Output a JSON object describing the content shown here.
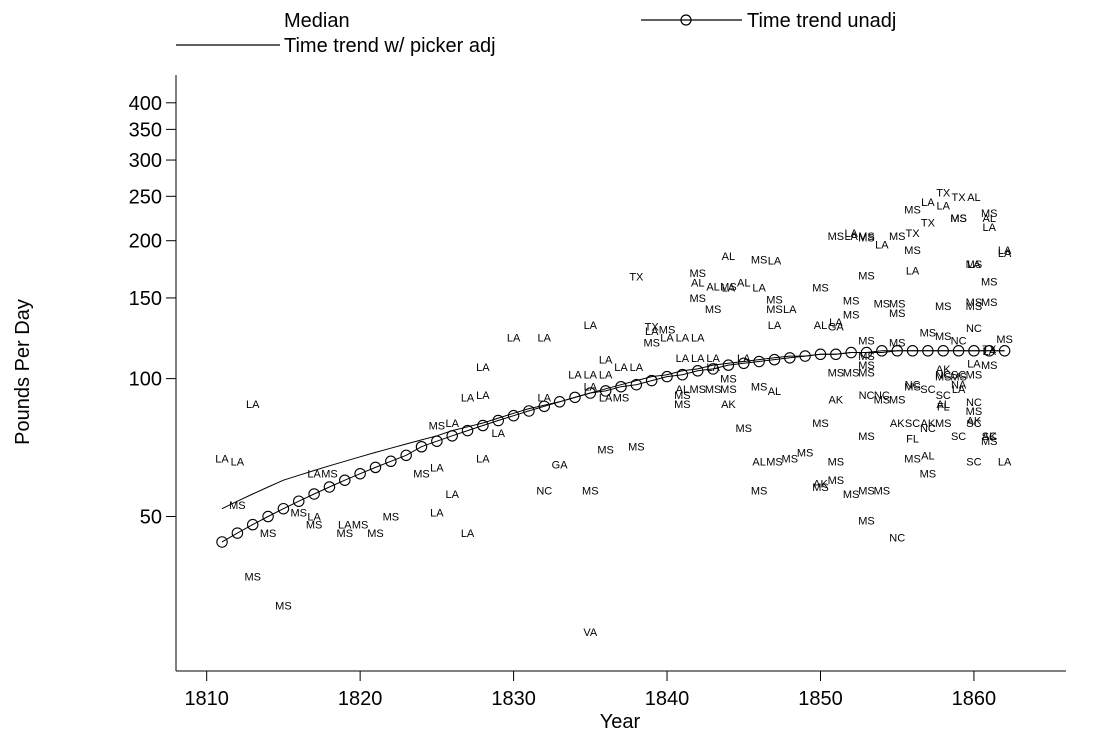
{
  "chart_data": {
    "type": "scatter",
    "title": "",
    "xlabel": "Year",
    "ylabel": "Pounds Per Day",
    "xlim": [
      1808,
      1866
    ],
    "ylim": [
      23,
      460
    ],
    "y_scale": "log",
    "grid": false,
    "legend_position": "top",
    "x_ticks": [
      1810,
      1820,
      1830,
      1840,
      1850,
      1860
    ],
    "y_ticks": [
      50,
      100,
      150,
      200,
      250,
      300,
      350,
      400
    ],
    "legend": [
      {
        "label": "Median",
        "style": "none"
      },
      {
        "label": "Time trend unadj",
        "style": "line-circle"
      },
      {
        "label": "Time trend w/ picker adj",
        "style": "line"
      }
    ],
    "series": [
      {
        "name": "Time trend unadj",
        "marker": "circle",
        "x": [
          1811,
          1812,
          1813,
          1814,
          1815,
          1816,
          1817,
          1818,
          1819,
          1820,
          1821,
          1822,
          1823,
          1824,
          1825,
          1826,
          1827,
          1828,
          1829,
          1830,
          1831,
          1832,
          1833,
          1834,
          1835,
          1836,
          1837,
          1838,
          1839,
          1840,
          1841,
          1842,
          1843,
          1844,
          1845,
          1846,
          1847,
          1848,
          1849,
          1850,
          1851,
          1852,
          1853,
          1854,
          1855,
          1856,
          1857,
          1858,
          1859,
          1860,
          1861,
          1862
        ],
        "y": [
          44,
          46,
          48,
          50,
          52,
          54,
          56,
          58,
          60,
          62,
          64,
          66,
          68,
          71,
          73,
          75,
          77,
          79,
          81,
          83,
          85,
          87,
          89,
          91,
          93,
          94,
          96,
          97,
          99,
          101,
          102,
          104,
          105,
          107,
          108,
          109,
          110,
          111,
          112,
          113,
          113,
          114,
          114,
          115,
          115,
          115,
          115,
          115,
          115,
          115,
          115,
          115
        ]
      },
      {
        "name": "Time trend w/ picker adj",
        "marker": "none",
        "x": [
          1811,
          1812,
          1813,
          1814,
          1815,
          1816,
          1817,
          1818,
          1819,
          1820,
          1821,
          1822,
          1823,
          1824,
          1825,
          1826,
          1827,
          1828,
          1829,
          1830,
          1831,
          1832,
          1833,
          1834,
          1835,
          1836,
          1837,
          1838,
          1839,
          1840,
          1841,
          1842,
          1843,
          1844,
          1845,
          1846,
          1847,
          1848,
          1849,
          1850,
          1851,
          1852,
          1853,
          1854,
          1855,
          1856,
          1857,
          1858,
          1859,
          1860,
          1861,
          1862
        ],
        "y": [
          52,
          54,
          56,
          58,
          60,
          61.5,
          63,
          64.5,
          66,
          67.5,
          69,
          70.5,
          72,
          73.5,
          75,
          77,
          78.5,
          80,
          82,
          84,
          86,
          87.5,
          89,
          91,
          93,
          95,
          97,
          99,
          101,
          102,
          104,
          105,
          107,
          108,
          109,
          110,
          111,
          112,
          112,
          113,
          113,
          114,
          114,
          114,
          115,
          115,
          115,
          115,
          115,
          115,
          115,
          115
        ]
      }
    ],
    "points": [
      {
        "t": "LA",
        "x": 1811,
        "y": 67
      },
      {
        "t": "LA",
        "x": 1812,
        "y": 66
      },
      {
        "t": "MS",
        "x": 1812,
        "y": 53
      },
      {
        "t": "LA",
        "x": 1813,
        "y": 88
      },
      {
        "t": "MS",
        "x": 1813,
        "y": 37
      },
      {
        "t": "MS",
        "x": 1814,
        "y": 46
      },
      {
        "t": "MS",
        "x": 1815,
        "y": 32
      },
      {
        "t": "MS",
        "x": 1816,
        "y": 51
      },
      {
        "t": "LA",
        "x": 1817,
        "y": 50
      },
      {
        "t": "MS",
        "x": 1817,
        "y": 48
      },
      {
        "t": "LA",
        "x": 1817,
        "y": 62
      },
      {
        "t": "MS",
        "x": 1818,
        "y": 62
      },
      {
        "t": "LA",
        "x": 1819,
        "y": 48
      },
      {
        "t": "MS",
        "x": 1819,
        "y": 46
      },
      {
        "t": "MS",
        "x": 1820,
        "y": 48
      },
      {
        "t": "MS",
        "x": 1821,
        "y": 46
      },
      {
        "t": "MS",
        "x": 1822,
        "y": 50
      },
      {
        "t": "MS",
        "x": 1824,
        "y": 62
      },
      {
        "t": "LA",
        "x": 1825,
        "y": 64
      },
      {
        "t": "MS",
        "x": 1825,
        "y": 79
      },
      {
        "t": "LA",
        "x": 1826,
        "y": 80
      },
      {
        "t": "LA",
        "x": 1825,
        "y": 51
      },
      {
        "t": "LA",
        "x": 1826,
        "y": 56
      },
      {
        "t": "LA",
        "x": 1827,
        "y": 46
      },
      {
        "t": "LA",
        "x": 1827,
        "y": 91
      },
      {
        "t": "LA",
        "x": 1828,
        "y": 92
      },
      {
        "t": "LA",
        "x": 1828,
        "y": 106
      },
      {
        "t": "LA",
        "x": 1828,
        "y": 67
      },
      {
        "t": "LA",
        "x": 1829,
        "y": 76
      },
      {
        "t": "LA",
        "x": 1830,
        "y": 123
      },
      {
        "t": "LA",
        "x": 1832,
        "y": 123
      },
      {
        "t": "LA",
        "x": 1832,
        "y": 91
      },
      {
        "t": "GA",
        "x": 1833,
        "y": 65
      },
      {
        "t": "NC",
        "x": 1832,
        "y": 57
      },
      {
        "t": "MS",
        "x": 1835,
        "y": 57
      },
      {
        "t": "LA",
        "x": 1834,
        "y": 102
      },
      {
        "t": "LA",
        "x": 1835,
        "y": 96
      },
      {
        "t": "LA",
        "x": 1835,
        "y": 131
      },
      {
        "t": "LA",
        "x": 1836,
        "y": 102
      },
      {
        "t": "LA",
        "x": 1835,
        "y": 102
      },
      {
        "t": "LA",
        "x": 1836,
        "y": 110
      },
      {
        "t": "MS",
        "x": 1836,
        "y": 70
      },
      {
        "t": "MS",
        "x": 1838,
        "y": 71
      },
      {
        "t": "LA",
        "x": 1836,
        "y": 91
      },
      {
        "t": "MS",
        "x": 1837,
        "y": 91
      },
      {
        "t": "LA",
        "x": 1837,
        "y": 106
      },
      {
        "t": "LA",
        "x": 1838,
        "y": 106
      },
      {
        "t": "TX",
        "x": 1838,
        "y": 167
      },
      {
        "t": "TX",
        "x": 1839,
        "y": 130
      },
      {
        "t": "LA",
        "x": 1839,
        "y": 127
      },
      {
        "t": "MS",
        "x": 1840,
        "y": 128
      },
      {
        "t": "MS",
        "x": 1839,
        "y": 120
      },
      {
        "t": "LA",
        "x": 1840,
        "y": 123
      },
      {
        "t": "LA",
        "x": 1841,
        "y": 123
      },
      {
        "t": "LA",
        "x": 1842,
        "y": 123
      },
      {
        "t": "LA",
        "x": 1841,
        "y": 111
      },
      {
        "t": "LA",
        "x": 1842,
        "y": 111
      },
      {
        "t": "LA",
        "x": 1843,
        "y": 111
      },
      {
        "t": "AL",
        "x": 1841,
        "y": 95
      },
      {
        "t": "MS",
        "x": 1841,
        "y": 92
      },
      {
        "t": "MS",
        "x": 1841,
        "y": 88
      },
      {
        "t": "MS",
        "x": 1842,
        "y": 95
      },
      {
        "t": "MS",
        "x": 1843,
        "y": 95
      },
      {
        "t": "MS",
        "x": 1844,
        "y": 95
      },
      {
        "t": "MS",
        "x": 1844,
        "y": 100
      },
      {
        "t": "AK",
        "x": 1844,
        "y": 88
      },
      {
        "t": "MS",
        "x": 1845,
        "y": 78
      },
      {
        "t": "LA",
        "x": 1843,
        "y": 106
      },
      {
        "t": "LA",
        "x": 1845,
        "y": 111
      },
      {
        "t": "MS",
        "x": 1842,
        "y": 170
      },
      {
        "t": "AL",
        "x": 1842,
        "y": 162
      },
      {
        "t": "AL",
        "x": 1843,
        "y": 159
      },
      {
        "t": "LA",
        "x": 1844,
        "y": 158
      },
      {
        "t": "MS",
        "x": 1844,
        "y": 159
      },
      {
        "t": "AL",
        "x": 1845,
        "y": 162
      },
      {
        "t": "LA",
        "x": 1846,
        "y": 158
      },
      {
        "t": "MS",
        "x": 1842,
        "y": 150
      },
      {
        "t": "MS",
        "x": 1843,
        "y": 142
      },
      {
        "t": "AL",
        "x": 1844,
        "y": 185
      },
      {
        "t": "MS",
        "x": 1846,
        "y": 182
      },
      {
        "t": "LA",
        "x": 1847,
        "y": 181
      },
      {
        "t": "MS",
        "x": 1847,
        "y": 149
      },
      {
        "t": "MS",
        "x": 1847,
        "y": 142
      },
      {
        "t": "LA",
        "x": 1848,
        "y": 142
      },
      {
        "t": "LA",
        "x": 1847,
        "y": 131
      },
      {
        "t": "MS",
        "x": 1846,
        "y": 96
      },
      {
        "t": "AL",
        "x": 1847,
        "y": 94
      },
      {
        "t": "AL",
        "x": 1846,
        "y": 66
      },
      {
        "t": "MS",
        "x": 1847,
        "y": 66
      },
      {
        "t": "MS",
        "x": 1848,
        "y": 67
      },
      {
        "t": "MS",
        "x": 1849,
        "y": 69
      },
      {
        "t": "MS",
        "x": 1846,
        "y": 57
      },
      {
        "t": "MS",
        "x": 1850,
        "y": 58
      },
      {
        "t": "AK",
        "x": 1850,
        "y": 59
      },
      {
        "t": "MS",
        "x": 1851,
        "y": 60
      },
      {
        "t": "MS",
        "x": 1851,
        "y": 66
      },
      {
        "t": "MS",
        "x": 1850,
        "y": 80
      },
      {
        "t": "MS",
        "x": 1852,
        "y": 56
      },
      {
        "t": "MS",
        "x": 1853,
        "y": 57
      },
      {
        "t": "MS",
        "x": 1854,
        "y": 57
      },
      {
        "t": "MS",
        "x": 1853,
        "y": 49
      },
      {
        "t": "NC",
        "x": 1855,
        "y": 45
      },
      {
        "t": "MS",
        "x": 1853,
        "y": 75
      },
      {
        "t": "AK",
        "x": 1851,
        "y": 90
      },
      {
        "t": "MS",
        "x": 1851,
        "y": 103
      },
      {
        "t": "MS",
        "x": 1852,
        "y": 103
      },
      {
        "t": "MS",
        "x": 1853,
        "y": 103
      },
      {
        "t": "NC",
        "x": 1853,
        "y": 92
      },
      {
        "t": "NC",
        "x": 1854,
        "y": 92
      },
      {
        "t": "MS",
        "x": 1854,
        "y": 90
      },
      {
        "t": "MS",
        "x": 1855,
        "y": 90
      },
      {
        "t": "MS",
        "x": 1853,
        "y": 107
      },
      {
        "t": "MS",
        "x": 1853,
        "y": 121
      },
      {
        "t": "MS",
        "x": 1855,
        "y": 120
      },
      {
        "t": "MS",
        "x": 1853,
        "y": 112
      },
      {
        "t": "AL",
        "x": 1850,
        "y": 131
      },
      {
        "t": "GA",
        "x": 1851,
        "y": 130
      },
      {
        "t": "LA",
        "x": 1851,
        "y": 133
      },
      {
        "t": "MS",
        "x": 1852,
        "y": 138
      },
      {
        "t": "MS",
        "x": 1852,
        "y": 148
      },
      {
        "t": "MS",
        "x": 1850,
        "y": 158
      },
      {
        "t": "MS",
        "x": 1853,
        "y": 168
      },
      {
        "t": "MS",
        "x": 1851,
        "y": 205
      },
      {
        "t": "LA",
        "x": 1852,
        "y": 205
      },
      {
        "t": "LA",
        "x": 1852,
        "y": 208
      },
      {
        "t": "MS",
        "x": 1853,
        "y": 205
      },
      {
        "t": "MS",
        "x": 1853,
        "y": 203
      },
      {
        "t": "LA",
        "x": 1854,
        "y": 196
      },
      {
        "t": "MS",
        "x": 1855,
        "y": 205
      },
      {
        "t": "MS",
        "x": 1854,
        "y": 146
      },
      {
        "t": "MS",
        "x": 1855,
        "y": 146
      },
      {
        "t": "MS",
        "x": 1855,
        "y": 139
      },
      {
        "t": "AK",
        "x": 1855,
        "y": 80
      },
      {
        "t": "SC",
        "x": 1856,
        "y": 80
      },
      {
        "t": "AK",
        "x": 1857,
        "y": 80
      },
      {
        "t": "MS",
        "x": 1858,
        "y": 80
      },
      {
        "t": "FL",
        "x": 1856,
        "y": 74
      },
      {
        "t": "NC",
        "x": 1857,
        "y": 78
      },
      {
        "t": "MS",
        "x": 1856,
        "y": 67
      },
      {
        "t": "AL",
        "x": 1857,
        "y": 68
      },
      {
        "t": "MS",
        "x": 1857,
        "y": 62
      },
      {
        "t": "MS",
        "x": 1856,
        "y": 96
      },
      {
        "t": "NC",
        "x": 1856,
        "y": 97
      },
      {
        "t": "SC",
        "x": 1857,
        "y": 95
      },
      {
        "t": "SC",
        "x": 1858,
        "y": 92
      },
      {
        "t": "AL",
        "x": 1858,
        "y": 88
      },
      {
        "t": "FL",
        "x": 1858,
        "y": 87
      },
      {
        "t": "AK",
        "x": 1858,
        "y": 105
      },
      {
        "t": "MS",
        "x": 1858,
        "y": 101
      },
      {
        "t": "NC",
        "x": 1858,
        "y": 102
      },
      {
        "t": "MS",
        "x": 1859,
        "y": 101
      },
      {
        "t": "SC",
        "x": 1859,
        "y": 102
      },
      {
        "t": "MS",
        "x": 1860,
        "y": 102
      },
      {
        "t": "NA",
        "x": 1859,
        "y": 97
      },
      {
        "t": "LA",
        "x": 1859,
        "y": 95
      },
      {
        "t": "LA",
        "x": 1860,
        "y": 108
      },
      {
        "t": "MS",
        "x": 1861,
        "y": 107
      },
      {
        "t": "NC",
        "x": 1860,
        "y": 89
      },
      {
        "t": "MS",
        "x": 1860,
        "y": 85
      },
      {
        "t": "AK",
        "x": 1860,
        "y": 81
      },
      {
        "t": "SC",
        "x": 1860,
        "y": 80
      },
      {
        "t": "SC",
        "x": 1859,
        "y": 75
      },
      {
        "t": "SC",
        "x": 1860,
        "y": 66
      },
      {
        "t": "MS",
        "x": 1861,
        "y": 73
      },
      {
        "t": "SC",
        "x": 1861,
        "y": 75
      },
      {
        "t": "AK",
        "x": 1861,
        "y": 75
      },
      {
        "t": "LA",
        "x": 1862,
        "y": 66
      },
      {
        "t": "MS",
        "x": 1857,
        "y": 126
      },
      {
        "t": "MS",
        "x": 1858,
        "y": 124
      },
      {
        "t": "NC",
        "x": 1859,
        "y": 121
      },
      {
        "t": "NC",
        "x": 1860,
        "y": 129
      },
      {
        "t": "TX",
        "x": 1861,
        "y": 116
      },
      {
        "t": "LA",
        "x": 1861,
        "y": 115
      },
      {
        "t": "MS",
        "x": 1862,
        "y": 122
      },
      {
        "t": "MS",
        "x": 1858,
        "y": 144
      },
      {
        "t": "MS",
        "x": 1860,
        "y": 144
      },
      {
        "t": "MS",
        "x": 1861,
        "y": 147
      },
      {
        "t": "MS",
        "x": 1860,
        "y": 147
      },
      {
        "t": "MS",
        "x": 1861,
        "y": 163
      },
      {
        "t": "LA",
        "x": 1856,
        "y": 172
      },
      {
        "t": "MS",
        "x": 1856,
        "y": 191
      },
      {
        "t": "TX",
        "x": 1856,
        "y": 208
      },
      {
        "t": "MS",
        "x": 1856,
        "y": 234
      },
      {
        "t": "TX",
        "x": 1857,
        "y": 219
      },
      {
        "t": "LA",
        "x": 1857,
        "y": 243
      },
      {
        "t": "LA",
        "x": 1858,
        "y": 239
      },
      {
        "t": "TX",
        "x": 1858,
        "y": 255
      },
      {
        "t": "TX",
        "x": 1859,
        "y": 249
      },
      {
        "t": "AL",
        "x": 1860,
        "y": 249
      },
      {
        "t": "MS",
        "x": 1859,
        "y": 224
      },
      {
        "t": "MS",
        "x": 1859,
        "y": 224
      },
      {
        "t": "LA",
        "x": 1861,
        "y": 214
      },
      {
        "t": "AL",
        "x": 1861,
        "y": 224
      },
      {
        "t": "MS",
        "x": 1861,
        "y": 230
      },
      {
        "t": "MS",
        "x": 1860,
        "y": 178
      },
      {
        "t": "LA",
        "x": 1860,
        "y": 178
      },
      {
        "t": "LA",
        "x": 1862,
        "y": 188
      },
      {
        "t": "LA",
        "x": 1862,
        "y": 191
      },
      {
        "t": "VA",
        "x": 1835,
        "y": 28
      }
    ]
  }
}
